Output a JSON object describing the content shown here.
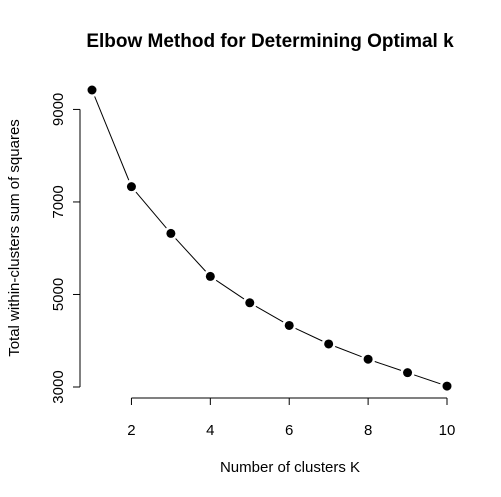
{
  "chart_data": {
    "type": "line",
    "title": "Elbow Method for Determining Optimal k",
    "xlabel": "Number of clusters K",
    "ylabel": "Total within-clusters sum of squares",
    "x": [
      1,
      2,
      3,
      4,
      5,
      6,
      7,
      8,
      9,
      10
    ],
    "series": [
      {
        "values": [
          9420,
          7330,
          6320,
          5390,
          4820,
          4330,
          3930,
          3600,
          3310,
          3020
        ]
      }
    ],
    "xticks": [
      2,
      4,
      6,
      8,
      10
    ],
    "yticks": [
      3000,
      5000,
      7000,
      9000
    ],
    "ylim": [
      3000,
      9420
    ],
    "xlim": [
      1,
      10
    ],
    "marker": "filled-circle",
    "grid": false
  }
}
